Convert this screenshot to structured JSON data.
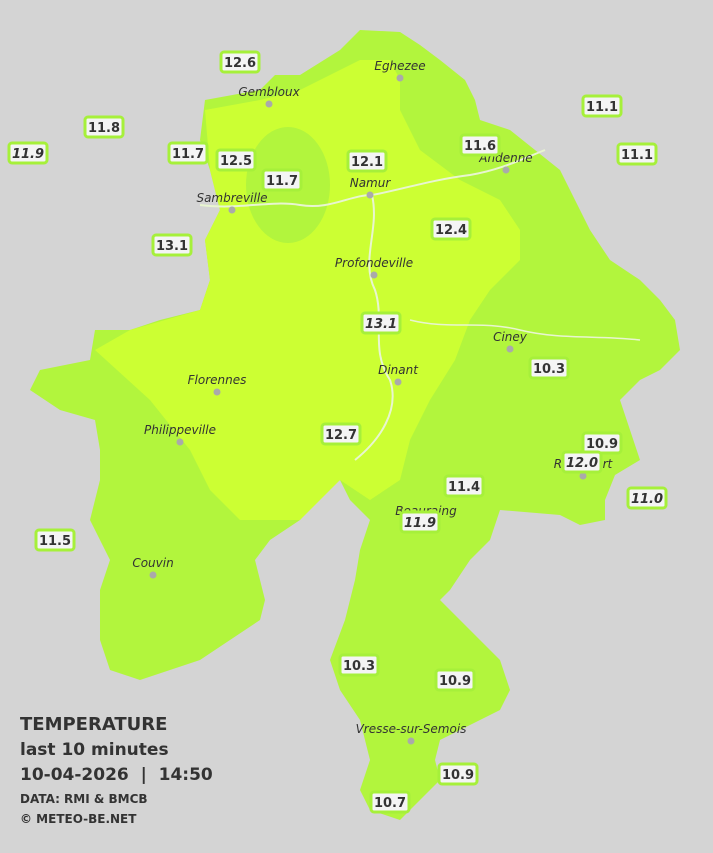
{
  "legend": {
    "title": "TEMPERATURE",
    "subtitle": "last 10 minutes",
    "datetime": "10-04-2026  |  14:50",
    "source": "DATA: RMI & BMCB",
    "copyright": "© METEO-BE.NET"
  },
  "cities": [
    "Eghezee",
    "Gembloux",
    "Andenne",
    "Namur",
    "Sambreville",
    "Profondeville",
    "Ciney",
    "Dinant",
    "Florennes",
    "Philippeville",
    "Rochefort",
    "Beauraing",
    "Couvin",
    "Vresse-sur-Semois"
  ],
  "stations": [
    "12.6",
    "11.8",
    "11.9",
    "11.7",
    "12.5",
    "11.7",
    "12.1",
    "11.6",
    "11.1",
    "11.1",
    "13.1",
    "12.4",
    "13.1",
    "10.3",
    "10.9",
    "12.0",
    "12.7",
    "11.4",
    "11.0",
    "11.9",
    "11.5",
    "10.3",
    "10.9",
    "10.9",
    "10.7"
  ]
}
